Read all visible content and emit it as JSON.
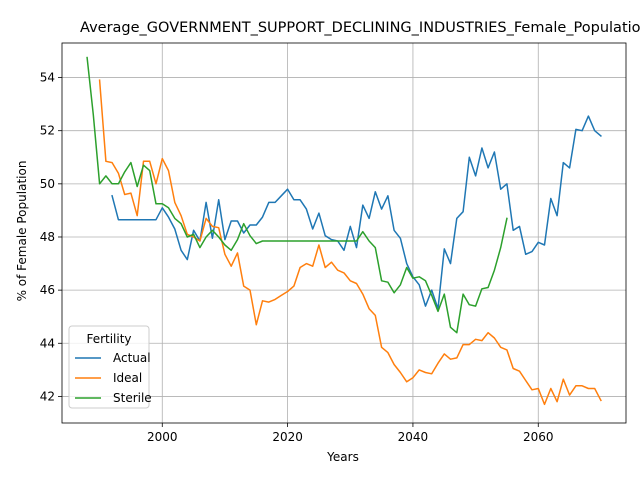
{
  "chart_data": {
    "type": "line",
    "title": "Average_GOVERNMENT_SUPPORT_DECLINING_INDUSTRIES_Female_Population",
    "xlabel": "Years",
    "ylabel": "% of Female Population",
    "xlim": [
      1984,
      2074
    ],
    "ylim": [
      41.0,
      55.3
    ],
    "xticks": [
      2000,
      2020,
      2040,
      2060
    ],
    "yticks": [
      42,
      44,
      46,
      48,
      50,
      52,
      54
    ],
    "grid": true,
    "legend": {
      "title": "Fertility",
      "position": "lower-left"
    },
    "series": [
      {
        "name": "Actual",
        "color": "#1f77b4",
        "x": [
          1992,
          1993,
          1994,
          1995,
          1996,
          1997,
          1998,
          1999,
          2000,
          2001,
          2002,
          2003,
          2004,
          2005,
          2006,
          2007,
          2008,
          2009,
          2010,
          2011,
          2012,
          2013,
          2014,
          2015,
          2016,
          2017,
          2018,
          2019,
          2020,
          2021,
          2022,
          2023,
          2024,
          2025,
          2026,
          2027,
          2028,
          2029,
          2030,
          2031,
          2032,
          2033,
          2034,
          2035,
          2036,
          2037,
          2038,
          2039,
          2040,
          2041,
          2042,
          2043,
          2044,
          2045,
          2046,
          2047,
          2048,
          2049,
          2050,
          2051,
          2052,
          2053,
          2054,
          2055,
          2056,
          2057,
          2058,
          2059,
          2060,
          2061,
          2062,
          2063,
          2064,
          2065,
          2066,
          2067,
          2068,
          2069,
          2070
        ],
        "y": [
          49.55,
          48.65,
          48.65,
          48.65,
          48.65,
          48.65,
          48.65,
          48.65,
          49.1,
          48.75,
          48.3,
          47.5,
          47.15,
          48.25,
          47.85,
          49.3,
          47.95,
          49.4,
          47.9,
          48.6,
          48.6,
          48.15,
          48.45,
          48.45,
          48.75,
          49.3,
          49.3,
          49.55,
          49.8,
          49.4,
          49.4,
          49.05,
          48.3,
          48.9,
          48.05,
          47.9,
          47.85,
          47.5,
          48.4,
          47.6,
          49.2,
          48.7,
          49.7,
          49.05,
          49.55,
          48.25,
          47.95,
          47.0,
          46.5,
          46.2,
          45.4,
          46.0,
          45.3,
          47.55,
          47.0,
          48.7,
          48.95,
          51.0,
          50.3,
          51.35,
          50.6,
          51.2,
          49.8,
          50.0,
          48.25,
          48.4,
          47.35,
          47.45,
          47.8,
          47.7,
          49.45,
          48.8,
          50.8,
          50.6,
          52.05,
          52.0,
          52.55,
          52.0,
          51.8
        ]
      },
      {
        "name": "Ideal",
        "color": "#ff7f0e",
        "x": [
          1990,
          1991,
          1992,
          1993,
          1994,
          1995,
          1996,
          1997,
          1998,
          1999,
          2000,
          2001,
          2002,
          2003,
          2004,
          2005,
          2006,
          2007,
          2008,
          2009,
          2010,
          2011,
          2012,
          2013,
          2014,
          2015,
          2016,
          2017,
          2018,
          2019,
          2020,
          2021,
          2022,
          2023,
          2024,
          2025,
          2026,
          2027,
          2028,
          2029,
          2030,
          2031,
          2032,
          2033,
          2034,
          2035,
          2036,
          2037,
          2038,
          2039,
          2040,
          2041,
          2042,
          2043,
          2044,
          2045,
          2046,
          2047,
          2048,
          2049,
          2050,
          2051,
          2052,
          2053,
          2054,
          2055,
          2056,
          2057,
          2058,
          2059,
          2060,
          2061,
          2062,
          2063,
          2064,
          2065,
          2066,
          2067,
          2068,
          2069,
          2070
        ],
        "y": [
          53.9,
          50.85,
          50.8,
          50.4,
          49.6,
          49.65,
          48.8,
          50.85,
          50.85,
          50.0,
          50.95,
          50.5,
          49.3,
          48.8,
          48.1,
          48.0,
          47.85,
          48.7,
          48.4,
          48.35,
          47.35,
          46.9,
          47.4,
          46.15,
          46.0,
          44.7,
          45.6,
          45.55,
          45.65,
          45.8,
          45.95,
          46.15,
          46.85,
          47.0,
          46.9,
          47.7,
          46.85,
          47.05,
          46.75,
          46.65,
          46.35,
          46.25,
          45.85,
          45.3,
          45.05,
          43.85,
          43.65,
          43.2,
          42.9,
          42.55,
          42.7,
          43.0,
          42.9,
          42.85,
          43.25,
          43.6,
          43.4,
          43.45,
          43.95,
          43.95,
          44.15,
          44.1,
          44.4,
          44.2,
          43.85,
          43.75,
          43.05,
          42.95,
          42.6,
          42.25,
          42.3,
          41.7,
          42.3,
          41.8,
          42.65,
          42.05,
          42.4,
          42.4,
          42.3,
          42.3,
          41.85
        ]
      },
      {
        "name": "Sterile",
        "color": "#2ca02c",
        "x": [
          1988,
          1989,
          1990,
          1991,
          1992,
          1993,
          1994,
          1995,
          1996,
          1997,
          1998,
          1999,
          2000,
          2001,
          2002,
          2003,
          2004,
          2005,
          2006,
          2007,
          2008,
          2009,
          2010,
          2011,
          2012,
          2013,
          2014,
          2015,
          2016,
          2017,
          2018,
          2019,
          2020,
          2021,
          2022,
          2023,
          2024,
          2025,
          2026,
          2027,
          2028,
          2029,
          2030,
          2031,
          2032,
          2033,
          2034,
          2035,
          2036,
          2037,
          2038,
          2039,
          2040,
          2041,
          2042,
          2043,
          2044,
          2045,
          2046,
          2047,
          2048,
          2049,
          2050,
          2051,
          2052,
          2053,
          2054,
          2055
        ],
        "y": [
          54.75,
          52.6,
          50.0,
          50.3,
          50.0,
          50.0,
          50.45,
          50.8,
          49.9,
          50.7,
          50.5,
          49.25,
          49.25,
          49.1,
          48.7,
          48.5,
          48.0,
          48.1,
          47.6,
          48.0,
          48.25,
          48.0,
          47.7,
          47.5,
          47.9,
          48.5,
          48.05,
          47.75,
          47.85,
          47.85,
          47.85,
          47.85,
          47.85,
          47.85,
          47.85,
          47.85,
          47.85,
          47.85,
          47.85,
          47.85,
          47.85,
          47.85,
          47.85,
          47.85,
          48.2,
          47.85,
          47.6,
          46.35,
          46.3,
          45.9,
          46.2,
          46.85,
          46.45,
          46.5,
          46.35,
          45.8,
          45.2,
          45.85,
          44.6,
          44.4,
          45.85,
          45.45,
          45.4,
          46.05,
          46.1,
          46.75,
          47.6,
          48.7
        ]
      }
    ]
  }
}
